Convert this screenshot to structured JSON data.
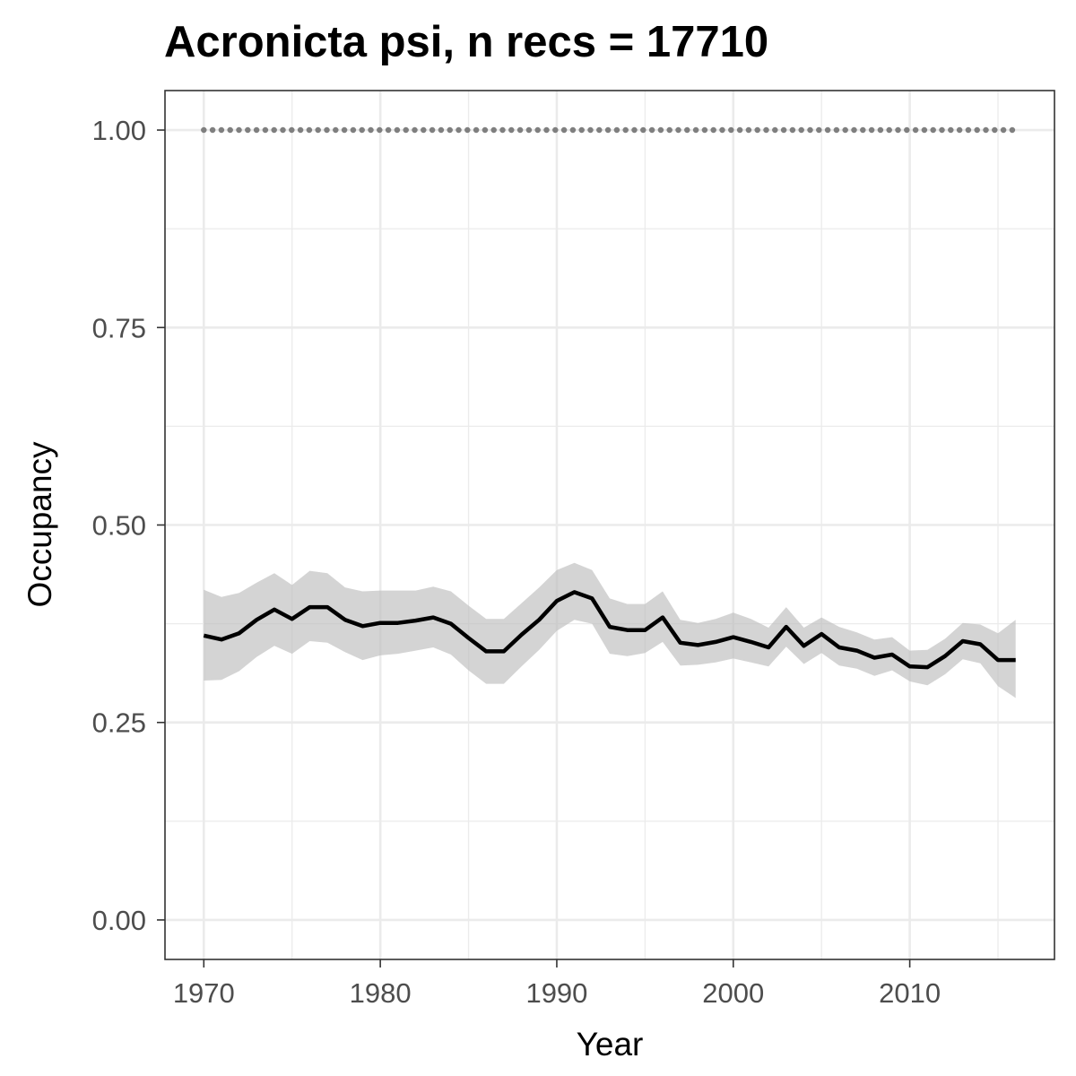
{
  "chart_data": {
    "type": "line",
    "title": "Acronicta psi, n recs = 17710",
    "xlabel": "Year",
    "ylabel": "Occupancy",
    "xlim": [
      1967.8,
      2018.2
    ],
    "ylim": [
      -0.05,
      1.05
    ],
    "x_ticks": [
      1970,
      1980,
      1990,
      2000,
      2010
    ],
    "x_tick_labels": [
      "1970",
      "1980",
      "1990",
      "2000",
      "2010"
    ],
    "y_ticks": [
      0,
      0.25,
      0.5,
      0.75,
      1
    ],
    "y_tick_labels": [
      "0.00",
      "0.25",
      "0.50",
      "0.75",
      "1.00"
    ],
    "grid": true,
    "legend": "none",
    "x": [
      1970,
      1971,
      1972,
      1973,
      1974,
      1975,
      1976,
      1977,
      1978,
      1979,
      1980,
      1981,
      1982,
      1983,
      1984,
      1985,
      1986,
      1987,
      1988,
      1989,
      1990,
      1991,
      1992,
      1993,
      1994,
      1995,
      1996,
      1997,
      1998,
      1999,
      2000,
      2001,
      2002,
      2003,
      2004,
      2005,
      2006,
      2007,
      2008,
      2009,
      2010,
      2011,
      2012,
      2013,
      2014,
      2015,
      2016
    ],
    "series": [
      {
        "role": "mean",
        "color": "#000000",
        "values": [
          0.36,
          0.355,
          0.363,
          0.38,
          0.393,
          0.381,
          0.396,
          0.396,
          0.38,
          0.372,
          0.376,
          0.376,
          0.379,
          0.383,
          0.375,
          0.357,
          0.34,
          0.34,
          0.361,
          0.38,
          0.404,
          0.415,
          0.407,
          0.371,
          0.367,
          0.367,
          0.383,
          0.351,
          0.348,
          0.352,
          0.358,
          0.352,
          0.345,
          0.371,
          0.347,
          0.362,
          0.345,
          0.341,
          0.332,
          0.336,
          0.321,
          0.32,
          0.334,
          0.353,
          0.349,
          0.329,
          0.329
        ]
      },
      {
        "role": "upper",
        "values": [
          0.418,
          0.409,
          0.414,
          0.427,
          0.439,
          0.424,
          0.442,
          0.439,
          0.421,
          0.416,
          0.417,
          0.417,
          0.417,
          0.422,
          0.416,
          0.398,
          0.381,
          0.381,
          0.401,
          0.421,
          0.443,
          0.452,
          0.443,
          0.407,
          0.4,
          0.4,
          0.416,
          0.38,
          0.376,
          0.381,
          0.389,
          0.381,
          0.37,
          0.396,
          0.37,
          0.383,
          0.371,
          0.364,
          0.355,
          0.358,
          0.341,
          0.342,
          0.356,
          0.376,
          0.374,
          0.363,
          0.38
        ]
      },
      {
        "role": "lower",
        "values": [
          0.303,
          0.304,
          0.315,
          0.333,
          0.347,
          0.337,
          0.353,
          0.351,
          0.339,
          0.329,
          0.335,
          0.337,
          0.341,
          0.345,
          0.336,
          0.316,
          0.299,
          0.299,
          0.321,
          0.342,
          0.366,
          0.38,
          0.375,
          0.337,
          0.334,
          0.338,
          0.352,
          0.322,
          0.323,
          0.326,
          0.331,
          0.326,
          0.321,
          0.346,
          0.324,
          0.338,
          0.322,
          0.318,
          0.309,
          0.316,
          0.302,
          0.297,
          0.311,
          0.33,
          0.325,
          0.296,
          0.281
        ]
      },
      {
        "role": "reference",
        "color": "#7f7f7f",
        "style": "dotted",
        "values": [
          1,
          1,
          1,
          1,
          1,
          1,
          1,
          1,
          1,
          1,
          1,
          1,
          1,
          1,
          1,
          1,
          1,
          1,
          1,
          1,
          1,
          1,
          1,
          1,
          1,
          1,
          1,
          1,
          1,
          1,
          1,
          1,
          1,
          1,
          1,
          1,
          1,
          1,
          1,
          1,
          1,
          1,
          1,
          1,
          1,
          1,
          1
        ]
      }
    ],
    "band_color": "#bdbdbd",
    "band_opacity": 0.65,
    "grid_color": "#ebebeb",
    "panel_border_color": "#333333",
    "tick_label_color": "#4d4d4d"
  }
}
